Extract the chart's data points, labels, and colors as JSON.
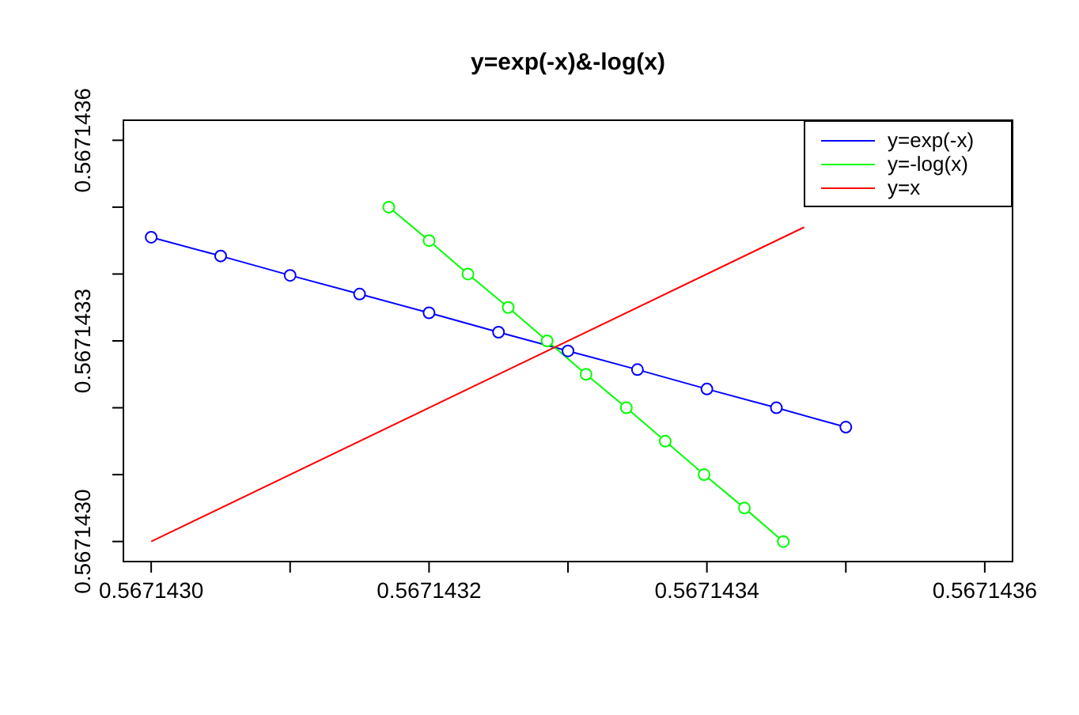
{
  "chart_data": {
    "type": "line",
    "title": "y=exp(-x)&-log(x)",
    "xlim": [
      0.56714298,
      0.56714362
    ],
    "ylim": [
      0.56714297,
      0.56714363
    ],
    "xticks": [
      {
        "value": 0.567143,
        "label": "0.5671430"
      },
      {
        "value": 0.5671431,
        "label": null
      },
      {
        "value": 0.5671432,
        "label": "0.5671432"
      },
      {
        "value": 0.5671433,
        "label": null
      },
      {
        "value": 0.5671434,
        "label": "0.5671434"
      },
      {
        "value": 0.5671435,
        "label": null
      },
      {
        "value": 0.5671436,
        "label": "0.5671436"
      }
    ],
    "yticks": [
      {
        "value": 0.567143,
        "label": "0.5671430"
      },
      {
        "value": 0.5671431,
        "label": null
      },
      {
        "value": 0.5671432,
        "label": null
      },
      {
        "value": 0.5671433,
        "label": "0.5671433"
      },
      {
        "value": 0.5671434,
        "label": null
      },
      {
        "value": 0.5671435,
        "label": null
      },
      {
        "value": 0.5671436,
        "label": "0.5671436"
      }
    ],
    "grid": false,
    "legend": "top right",
    "series": [
      {
        "name": "y=exp(-x)",
        "color": "#0000ff",
        "marker": "circle",
        "x": [
          0.567143,
          0.56714305,
          0.5671431,
          0.56714315,
          0.5671432,
          0.56714325,
          0.5671433,
          0.56714335,
          0.5671434,
          0.56714345,
          0.5671435
        ],
        "values": [
          0.567143455,
          0.567143427,
          0.567143398,
          0.56714337,
          0.567143342,
          0.567143313,
          0.567143285,
          0.567143257,
          0.567143228,
          0.5671432,
          0.567143171
        ]
      },
      {
        "name": "y=-log(x)",
        "color": "#00ff00",
        "marker": "circle",
        "x": [
          0.567143171,
          0.5671432,
          0.567143228,
          0.567143257,
          0.567143285,
          0.567143313,
          0.567143342,
          0.56714337,
          0.567143398,
          0.567143427,
          0.567143455
        ],
        "values": [
          0.5671435,
          0.56714345,
          0.5671434,
          0.56714335,
          0.5671433,
          0.56714325,
          0.5671432,
          0.56714315,
          0.5671431,
          0.56714305,
          0.567143
        ]
      },
      {
        "name": "y=x",
        "color": "#ff0000",
        "marker": "none",
        "x": [
          0.567143,
          0.56714347
        ],
        "values": [
          0.567143,
          0.56714347
        ]
      }
    ]
  }
}
